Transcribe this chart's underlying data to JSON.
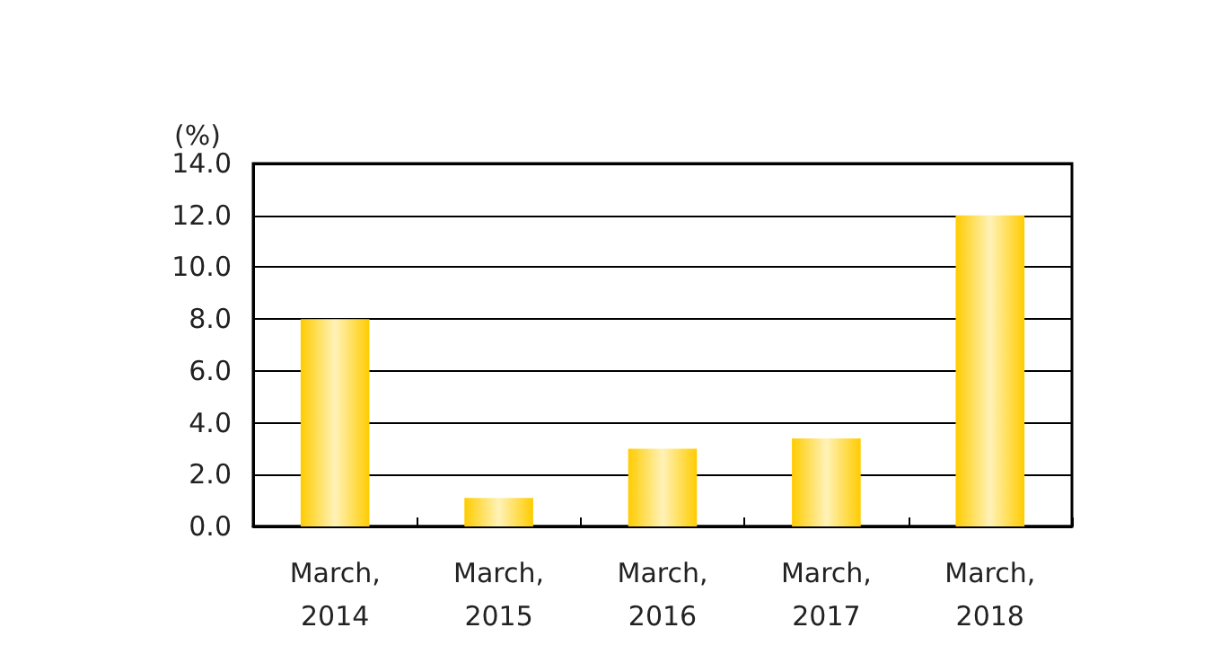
{
  "chart_data": {
    "type": "bar",
    "ylabel": "(%)",
    "categories": [
      "March, 2014",
      "March, 2015",
      "March, 2016",
      "March, 2017",
      "March, 2018"
    ],
    "values": [
      8.0,
      1.1,
      3.0,
      3.4,
      12.0
    ],
    "color": "#ffcc00",
    "ylim": [
      0,
      14
    ],
    "yticks": [
      {
        "value": 0,
        "label": "0.0"
      },
      {
        "value": 2,
        "label": "2.0"
      },
      {
        "value": 4,
        "label": "4.0"
      },
      {
        "value": 6,
        "label": "6.0"
      },
      {
        "value": 8,
        "label": "8.0"
      },
      {
        "value": 10,
        "label": "10.0"
      },
      {
        "value": 12,
        "label": "12.0"
      },
      {
        "value": 14,
        "label": "14.0"
      }
    ],
    "grid": "y"
  }
}
